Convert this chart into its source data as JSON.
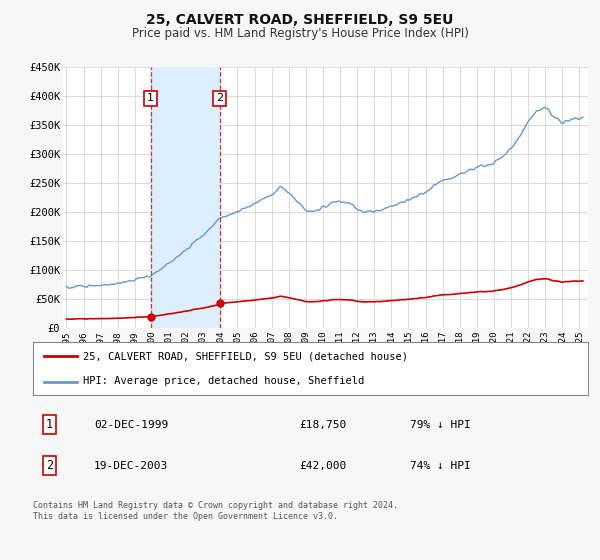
{
  "title": "25, CALVERT ROAD, SHEFFIELD, S9 5EU",
  "subtitle": "Price paid vs. HM Land Registry's House Price Index (HPI)",
  "ylim": [
    0,
    450000
  ],
  "yticks": [
    0,
    50000,
    100000,
    150000,
    200000,
    250000,
    300000,
    350000,
    400000,
    450000
  ],
  "ytick_labels": [
    "£0",
    "£50K",
    "£100K",
    "£150K",
    "£200K",
    "£250K",
    "£300K",
    "£350K",
    "£400K",
    "£450K"
  ],
  "background_color": "#f7f7f7",
  "plot_bg_color": "#ffffff",
  "grid_color": "#cccccc",
  "sale1_date_x": 1999.92,
  "sale1_price": 18750,
  "sale2_date_x": 2003.96,
  "sale2_price": 42000,
  "legend_line1": "25, CALVERT ROAD, SHEFFIELD, S9 5EU (detached house)",
  "legend_line2": "HPI: Average price, detached house, Sheffield",
  "table_row1_date": "02-DEC-1999",
  "table_row1_price": "£18,750",
  "table_row1_hpi": "79% ↓ HPI",
  "table_row2_date": "19-DEC-2003",
  "table_row2_price": "£42,000",
  "table_row2_hpi": "74% ↓ HPI",
  "footer": "Contains HM Land Registry data © Crown copyright and database right 2024.\nThis data is licensed under the Open Government Licence v3.0.",
  "red_line_color": "#cc0000",
  "blue_line_color": "#6699cc",
  "highlight_fill": "#ddeeff",
  "dashed_line_color": "#cc3333",
  "marker_color": "#cc0000",
  "box_color": "#cc0000",
  "hpi_start": 1995.0,
  "hpi_end": 2025.5,
  "xlim_start": 1994.8,
  "xlim_end": 2025.5
}
